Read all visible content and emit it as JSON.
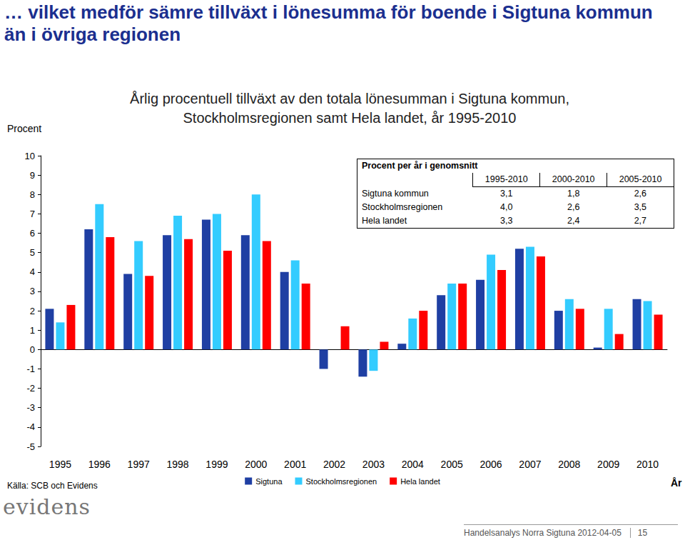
{
  "page": {
    "headline": "… vilket medför sämre tillväxt i lönesumma för boende i Sigtuna kommun än i övriga regionen",
    "source": "Källa: SCB och Evidens",
    "logo": "evidens",
    "footer": "Handelsanalys Norra Sigtuna 2012-04-05",
    "page_number": "15"
  },
  "chart_data": {
    "type": "bar",
    "title": "Årlig procentuell tillväxt av den totala lönesumman i Sigtuna kommun, Stockholmsregionen samt Hela landet, år 1995-2010",
    "y_label": "Procent",
    "x_label": "År",
    "categories": [
      "1995",
      "1996",
      "1997",
      "1998",
      "1999",
      "2000",
      "2001",
      "2002",
      "2003",
      "2004",
      "2005",
      "2006",
      "2007",
      "2008",
      "2009",
      "2010"
    ],
    "series": [
      {
        "name": "Sigtuna",
        "color": "#1f3fa3",
        "values": [
          2.1,
          6.2,
          3.9,
          5.9,
          6.7,
          5.9,
          4.0,
          -1.0,
          -1.4,
          0.3,
          2.8,
          3.6,
          5.2,
          2.0,
          0.1,
          2.6
        ]
      },
      {
        "name": "Stockholmsregionen",
        "color": "#33ccff",
        "values": [
          1.4,
          7.5,
          5.6,
          6.9,
          7.0,
          8.0,
          4.6,
          0.0,
          -1.1,
          1.6,
          3.4,
          4.9,
          5.3,
          2.6,
          2.1,
          2.5
        ]
      },
      {
        "name": "Hela landet",
        "color": "#ff0000",
        "values": [
          2.3,
          5.8,
          3.8,
          5.7,
          5.1,
          5.6,
          3.4,
          1.2,
          0.4,
          2.0,
          3.4,
          4.1,
          4.8,
          2.1,
          0.8,
          1.8
        ]
      }
    ],
    "ylim": [
      -5,
      10
    ],
    "yticks": [
      -5,
      -4,
      -3,
      -2,
      -1,
      0,
      1,
      2,
      3,
      4,
      5,
      6,
      7,
      8,
      9,
      10
    ],
    "grid": false,
    "legend": "bottom"
  },
  "table": {
    "title": "Procent per år i genomsnitt",
    "columns": [
      "1995-2010",
      "2000-2010",
      "2005-2010"
    ],
    "rows": [
      [
        "Sigtuna kommun",
        "3,1",
        "1,8",
        "2,6"
      ],
      [
        "Stockholmsregionen",
        "4,0",
        "2,6",
        "3,5"
      ],
      [
        "Hela landet",
        "3,3",
        "2,4",
        "2,7"
      ]
    ]
  }
}
